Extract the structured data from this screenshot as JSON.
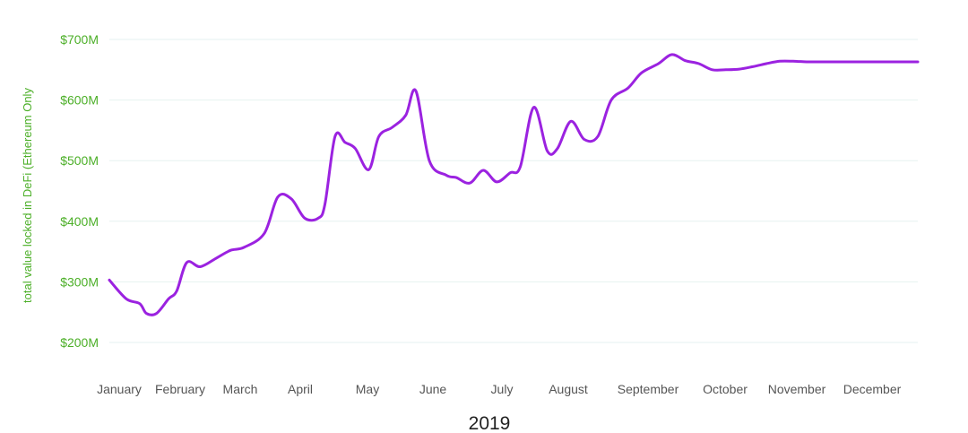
{
  "chart_data": {
    "type": "line",
    "title": "",
    "xlabel": "2019",
    "ylabel": "total value locked in DeFi (Ethereum Only",
    "ylim": [
      180,
      720
    ],
    "y_ticks": [
      {
        "value": 200,
        "label": "$200M"
      },
      {
        "value": 300,
        "label": "$300M"
      },
      {
        "value": 400,
        "label": "$400M"
      },
      {
        "value": 500,
        "label": "$500M"
      },
      {
        "value": 600,
        "label": "$600M"
      },
      {
        "value": 700,
        "label": "$700M"
      }
    ],
    "x_ticks": [
      "January",
      "February",
      "March",
      "April",
      "May",
      "June",
      "July",
      "August",
      "September",
      "October",
      "November",
      "December"
    ],
    "grid": true,
    "colors": {
      "line": "#9b22e0",
      "tick_y": "#4caf28",
      "grid": "#e6f2f0",
      "ylabel": "#4caf28"
    },
    "series": [
      {
        "x": [
          0.0,
          0.25,
          0.45,
          0.55,
          0.7,
          0.88,
          1.0,
          1.15,
          1.35,
          1.6,
          1.8,
          2.0,
          2.3,
          2.5,
          2.7,
          2.9,
          3.1,
          3.2,
          3.35,
          3.5,
          3.65,
          3.85,
          4.0,
          4.2,
          4.4,
          4.55,
          4.75,
          5.0,
          5.15,
          5.35,
          5.55,
          5.75,
          5.95,
          6.1,
          6.3,
          6.5,
          6.65,
          6.85,
          7.05,
          7.25,
          7.45,
          7.7,
          7.9,
          8.15,
          8.35,
          8.55,
          8.75,
          8.95,
          9.15,
          9.35,
          9.55,
          9.75,
          9.95,
          10.15,
          10.35,
          10.5,
          10.7,
          10.95,
          11.15,
          11.35,
          11.55,
          11.75,
          11.95,
          12.0
        ],
        "y": [
          303,
          272,
          264,
          248,
          248,
          272,
          285,
          332,
          325,
          340,
          352,
          357,
          380,
          440,
          437,
          405,
          405,
          428,
          540,
          530,
          520,
          485,
          540,
          555,
          575,
          615,
          500,
          476,
          472,
          463,
          484,
          465,
          480,
          490,
          588,
          516,
          520,
          565,
          535,
          540,
          600,
          620,
          645,
          660,
          675,
          665,
          660,
          650,
          650,
          651,
          655,
          660,
          664,
          664,
          663,
          663,
          663,
          663,
          663,
          663,
          663,
          663,
          663,
          663
        ]
      }
    ]
  }
}
